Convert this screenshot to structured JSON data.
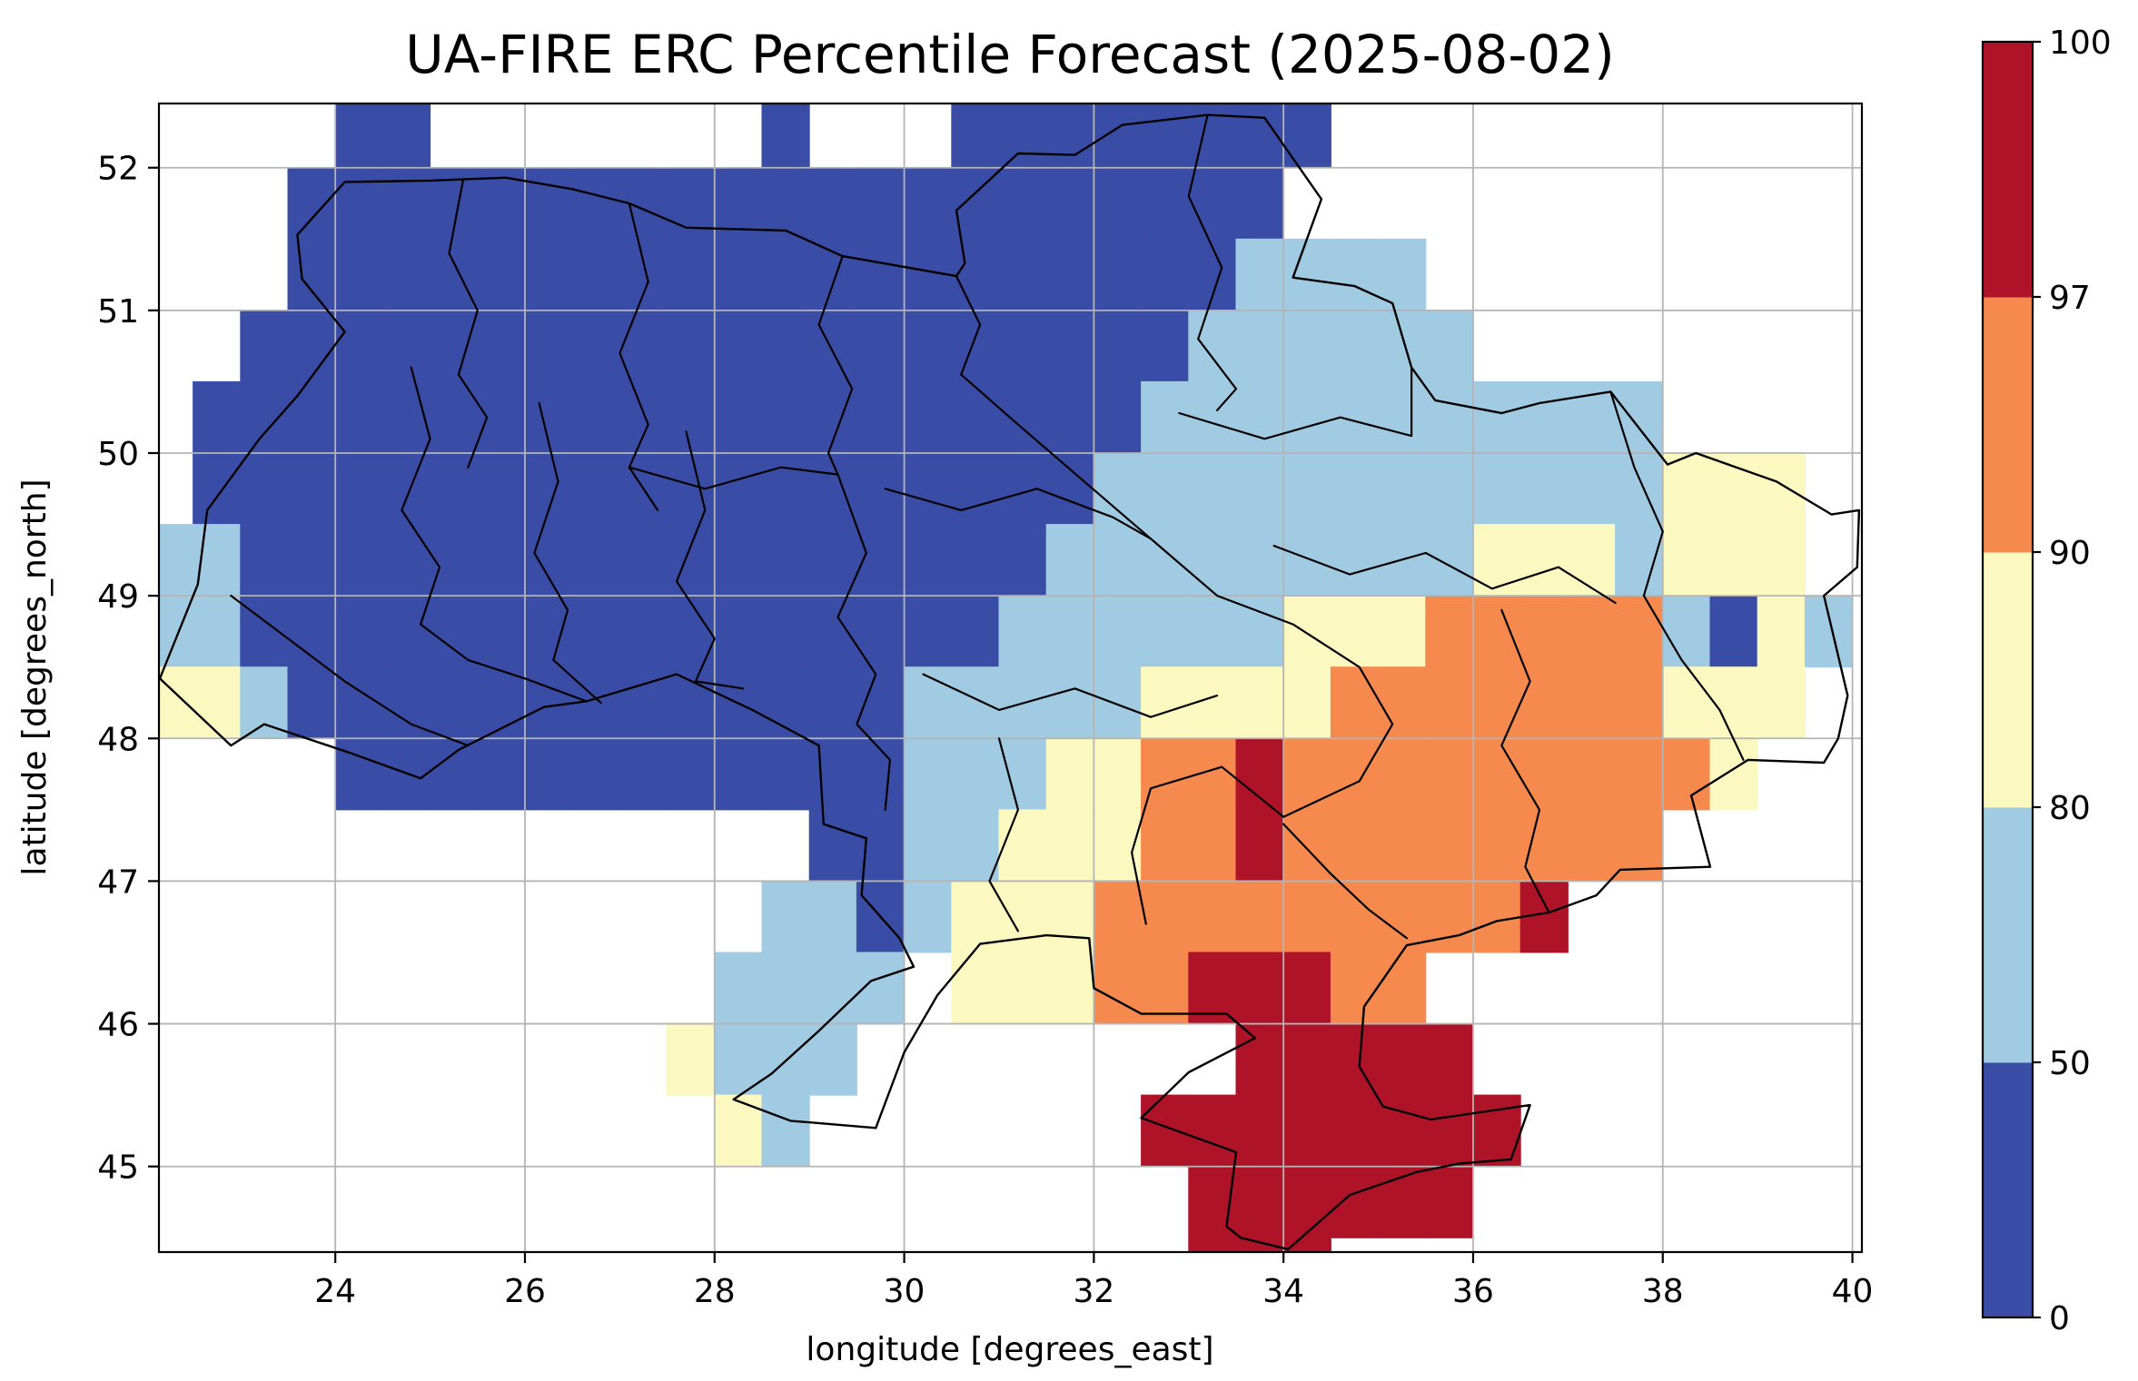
{
  "figure": {
    "background": "#ffffff"
  },
  "chart_data": {
    "type": "heatmap",
    "title": "UA-FIRE ERC Percentile Forecast (2025-08-02)",
    "xlabel": "longitude [degrees_east]",
    "ylabel": "latitude [degrees_north]",
    "xlim": [
      22.14,
      40.1
    ],
    "ylim": [
      44.4,
      52.45
    ],
    "x_ticks": [
      24,
      26,
      28,
      30,
      32,
      34,
      36,
      38,
      40
    ],
    "y_ticks": [
      45,
      46,
      47,
      48,
      49,
      50,
      51,
      52
    ],
    "grid_on": true,
    "grid_color": "#b4b4b4",
    "value_levels": [
      0,
      50,
      80,
      90,
      97,
      100
    ],
    "level_colors": [
      "#3a4da6",
      "#a0cbe2",
      "#fbf8c0",
      "#f6894e",
      "#ae1328"
    ],
    "cell_encoding": {
      "1": "percentile 0-50",
      "2": "percentile 50-80",
      "3": "percentile 80-90",
      "4": "percentile 90-97",
      "5": "percentile 97-100",
      ".": "no data / outside domain"
    },
    "cell_deg": 0.5,
    "grid_lon_origin": 22.0,
    "grid_lat_top": 52.5,
    "cells_rows": [
      "....11.......1...11111111...........",
      "...111111111111111111111............",
      "...111111111111111111112222.........",
      "..11111111111111111111222222........",
      ".1111111111111111111122222222222....",
      ".1111111111111111111222222222222333.",
      "22111111111111111112222222223332333.",
      "221111111111111111222222333444442132",
      "33211111111111112222233334444444333.",
      "....111111111111222334454444444443..",
      "..............112233344544444444....",
      ".............22123334444444445......",
      "............2222.3334455544.........",
      "...........3222........55555........",
      "............32.......55555555.......",
      "......................555555........",
      "......................555..........."
    ],
    "boundary_color": "#000000",
    "national_border": [
      [
        23.6,
        51.53
      ],
      [
        24.1,
        51.9
      ],
      [
        25.0,
        51.91
      ],
      [
        25.8,
        51.93
      ],
      [
        26.5,
        51.85
      ],
      [
        27.1,
        51.75
      ],
      [
        27.7,
        51.58
      ],
      [
        28.75,
        51.56
      ],
      [
        29.35,
        51.38
      ],
      [
        30.55,
        51.24
      ],
      [
        30.64,
        51.33
      ],
      [
        30.55,
        51.7
      ],
      [
        31.2,
        52.1
      ],
      [
        31.8,
        52.09
      ],
      [
        32.3,
        52.3
      ],
      [
        33.2,
        52.37
      ],
      [
        33.8,
        52.35
      ],
      [
        34.4,
        51.78
      ],
      [
        34.1,
        51.23
      ],
      [
        34.75,
        51.17
      ],
      [
        35.15,
        51.05
      ],
      [
        35.35,
        50.6
      ],
      [
        35.6,
        50.37
      ],
      [
        36.3,
        50.28
      ],
      [
        36.7,
        50.35
      ],
      [
        37.45,
        50.43
      ],
      [
        38.05,
        49.92
      ],
      [
        38.35,
        50.0
      ],
      [
        39.2,
        49.8
      ],
      [
        39.78,
        49.57
      ],
      [
        40.07,
        49.6
      ],
      [
        40.05,
        49.2
      ],
      [
        39.7,
        49.0
      ],
      [
        39.95,
        48.3
      ],
      [
        39.85,
        48.0
      ],
      [
        39.7,
        47.83
      ],
      [
        38.9,
        47.85
      ],
      [
        38.3,
        47.6
      ],
      [
        38.5,
        47.1
      ],
      [
        37.55,
        47.08
      ],
      [
        37.3,
        46.9
      ],
      [
        36.8,
        46.78
      ],
      [
        36.25,
        46.72
      ],
      [
        35.85,
        46.62
      ],
      [
        35.3,
        46.55
      ],
      [
        34.85,
        46.12
      ],
      [
        34.8,
        45.7
      ],
      [
        35.05,
        45.42
      ],
      [
        35.55,
        45.33
      ],
      [
        36.6,
        45.43
      ],
      [
        36.4,
        45.05
      ],
      [
        35.85,
        45.02
      ],
      [
        35.4,
        44.96
      ],
      [
        34.7,
        44.8
      ],
      [
        34.05,
        44.42
      ],
      [
        33.55,
        44.5
      ],
      [
        33.4,
        44.58
      ],
      [
        33.5,
        45.1
      ],
      [
        32.5,
        45.34
      ],
      [
        33.0,
        45.66
      ],
      [
        33.7,
        45.9
      ],
      [
        33.4,
        46.07
      ],
      [
        32.5,
        46.07
      ],
      [
        32.0,
        46.25
      ],
      [
        31.95,
        46.6
      ],
      [
        31.5,
        46.62
      ],
      [
        30.8,
        46.56
      ],
      [
        30.35,
        46.2
      ],
      [
        30.0,
        45.8
      ],
      [
        29.7,
        45.27
      ],
      [
        28.8,
        45.32
      ],
      [
        28.2,
        45.47
      ],
      [
        28.6,
        45.65
      ],
      [
        29.1,
        45.95
      ],
      [
        29.65,
        46.3
      ],
      [
        30.1,
        46.4
      ],
      [
        29.95,
        46.6
      ],
      [
        29.55,
        46.9
      ],
      [
        29.6,
        47.3
      ],
      [
        29.15,
        47.4
      ],
      [
        29.1,
        47.95
      ],
      [
        28.4,
        48.2
      ],
      [
        27.6,
        48.45
      ],
      [
        26.65,
        48.26
      ],
      [
        26.2,
        48.22
      ],
      [
        25.3,
        47.92
      ],
      [
        24.9,
        47.72
      ],
      [
        24.15,
        47.9
      ],
      [
        23.25,
        48.1
      ],
      [
        22.9,
        47.95
      ],
      [
        22.15,
        48.42
      ],
      [
        22.55,
        49.08
      ],
      [
        22.65,
        49.6
      ],
      [
        23.2,
        50.1
      ],
      [
        23.6,
        50.4
      ],
      [
        24.1,
        50.85
      ],
      [
        23.65,
        51.22
      ],
      [
        23.6,
        51.53
      ]
    ],
    "region_borders": [
      [
        [
          25.35,
          51.92
        ],
        [
          25.2,
          51.4
        ],
        [
          25.5,
          51.0
        ],
        [
          25.3,
          50.55
        ],
        [
          25.6,
          50.25
        ],
        [
          25.4,
          49.9
        ]
      ],
      [
        [
          27.1,
          51.75
        ],
        [
          27.3,
          51.2
        ],
        [
          27.0,
          50.7
        ],
        [
          27.3,
          50.2
        ],
        [
          27.1,
          49.9
        ],
        [
          27.4,
          49.6
        ]
      ],
      [
        [
          29.35,
          51.38
        ],
        [
          29.1,
          50.9
        ],
        [
          29.45,
          50.45
        ],
        [
          29.2,
          50.0
        ],
        [
          29.3,
          49.85
        ]
      ],
      [
        [
          30.55,
          51.24
        ],
        [
          30.8,
          50.9
        ],
        [
          30.6,
          50.55
        ]
      ],
      [
        [
          33.2,
          52.37
        ],
        [
          33.0,
          51.8
        ],
        [
          33.35,
          51.3
        ],
        [
          33.1,
          50.8
        ],
        [
          33.5,
          50.45
        ],
        [
          33.3,
          50.3
        ]
      ],
      [
        [
          32.9,
          50.28
        ],
        [
          33.8,
          50.1
        ],
        [
          34.6,
          50.25
        ],
        [
          35.35,
          50.12
        ],
        [
          35.35,
          50.6
        ]
      ],
      [
        [
          24.8,
          50.6
        ],
        [
          25.0,
          50.1
        ],
        [
          24.7,
          49.6
        ],
        [
          25.1,
          49.2
        ],
        [
          24.9,
          48.8
        ],
        [
          25.4,
          48.55
        ]
      ],
      [
        [
          26.15,
          50.35
        ],
        [
          26.35,
          49.8
        ],
        [
          26.1,
          49.3
        ],
        [
          26.45,
          48.9
        ],
        [
          26.3,
          48.55
        ],
        [
          26.8,
          48.25
        ]
      ],
      [
        [
          27.7,
          50.15
        ],
        [
          27.9,
          49.6
        ],
        [
          27.6,
          49.1
        ],
        [
          28.0,
          48.7
        ],
        [
          27.8,
          48.4
        ],
        [
          28.3,
          48.35
        ]
      ],
      [
        [
          29.3,
          49.85
        ],
        [
          29.6,
          49.3
        ],
        [
          29.3,
          48.85
        ],
        [
          29.7,
          48.45
        ],
        [
          29.5,
          48.1
        ],
        [
          29.85,
          47.85
        ],
        [
          29.8,
          47.5
        ]
      ],
      [
        [
          29.8,
          49.75
        ],
        [
          30.6,
          49.6
        ],
        [
          31.4,
          49.75
        ],
        [
          32.2,
          49.55
        ],
        [
          32.6,
          49.4
        ]
      ],
      [
        [
          30.6,
          50.55
        ],
        [
          31.2,
          50.2
        ],
        [
          31.9,
          49.8
        ],
        [
          32.6,
          49.4
        ],
        [
          33.3,
          49.0
        ],
        [
          34.1,
          48.8
        ],
        [
          34.8,
          48.5
        ],
        [
          35.15,
          48.1
        ],
        [
          34.8,
          47.7
        ],
        [
          34.0,
          47.45
        ],
        [
          33.35,
          47.8
        ],
        [
          32.6,
          47.65
        ],
        [
          32.4,
          47.2
        ],
        [
          32.55,
          46.7
        ]
      ],
      [
        [
          37.45,
          50.43
        ],
        [
          37.7,
          49.9
        ],
        [
          38.0,
          49.45
        ],
        [
          37.8,
          49.0
        ],
        [
          38.2,
          48.55
        ],
        [
          38.6,
          48.2
        ],
        [
          38.85,
          47.85
        ]
      ],
      [
        [
          33.9,
          49.35
        ],
        [
          34.7,
          49.15
        ],
        [
          35.5,
          49.3
        ],
        [
          36.2,
          49.05
        ],
        [
          36.9,
          49.2
        ],
        [
          37.5,
          48.95
        ]
      ],
      [
        [
          36.3,
          48.9
        ],
        [
          36.6,
          48.4
        ],
        [
          36.3,
          47.95
        ],
        [
          36.7,
          47.5
        ],
        [
          36.55,
          47.1
        ],
        [
          36.8,
          46.78
        ]
      ],
      [
        [
          34.0,
          47.4
        ],
        [
          34.5,
          47.05
        ],
        [
          34.9,
          46.8
        ],
        [
          35.3,
          46.6
        ]
      ],
      [
        [
          31.0,
          48.0
        ],
        [
          31.2,
          47.5
        ],
        [
          30.9,
          47.0
        ],
        [
          31.2,
          46.65
        ]
      ],
      [
        [
          30.2,
          48.45
        ],
        [
          31.0,
          48.2
        ],
        [
          31.8,
          48.35
        ],
        [
          32.6,
          48.15
        ],
        [
          33.3,
          48.3
        ]
      ],
      [
        [
          22.9,
          49.0
        ],
        [
          23.5,
          48.7
        ],
        [
          24.1,
          48.4
        ],
        [
          24.8,
          48.1
        ],
        [
          25.4,
          47.95
        ]
      ],
      [
        [
          27.1,
          49.9
        ],
        [
          27.9,
          49.75
        ],
        [
          28.7,
          49.9
        ],
        [
          29.3,
          49.85
        ]
      ],
      [
        [
          25.4,
          48.55
        ],
        [
          26.0,
          48.42
        ],
        [
          26.65,
          48.26
        ]
      ]
    ]
  },
  "colorbar": {
    "tick_labels": [
      "0",
      "50",
      "80",
      "90",
      "97",
      "100"
    ],
    "segment_colors": [
      "#3a4da6",
      "#a0cbe2",
      "#fbf8c0",
      "#f6894e",
      "#ae1328"
    ]
  }
}
